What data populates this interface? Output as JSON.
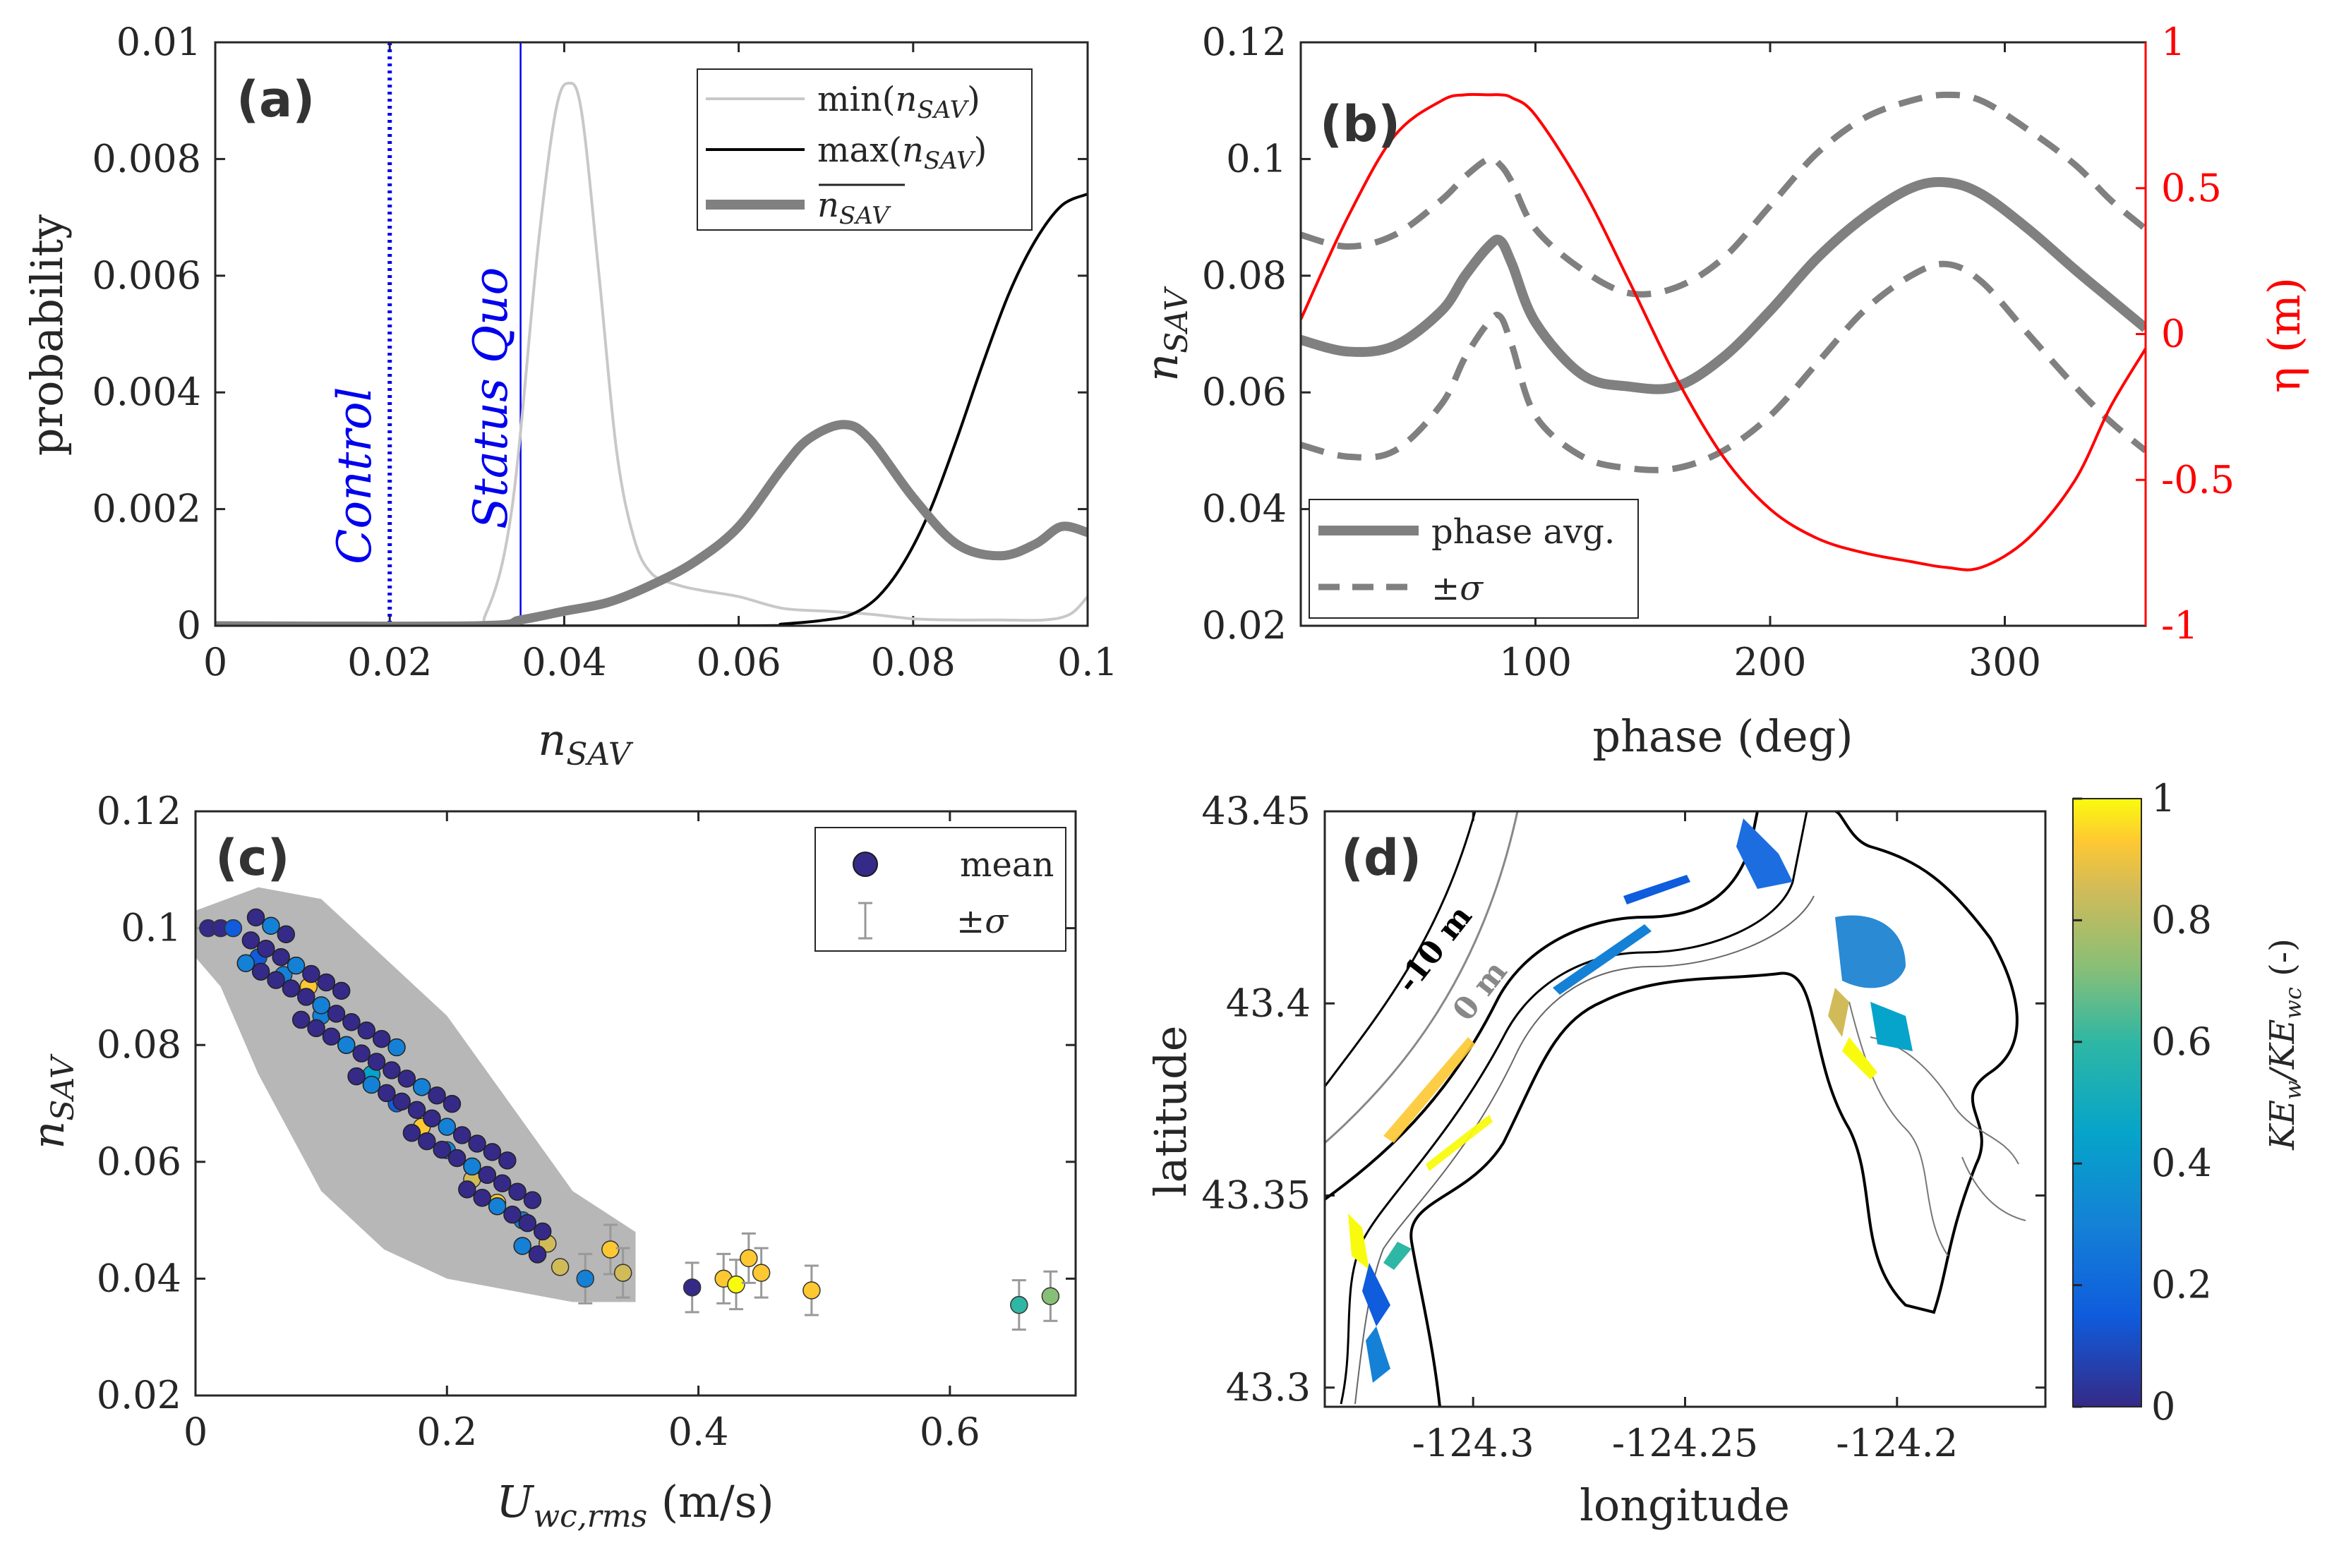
{
  "colors": {
    "axis": "#262626",
    "gray_thick": "#808080",
    "gray_light": "#c8c8c8",
    "black": "#000000",
    "blue": "#0000ee",
    "red": "#ff0000",
    "errorbar": "#999999"
  },
  "panels": {
    "a": {
      "tag": "(a)",
      "xlabel": "n_SAV",
      "ylabel": "probability",
      "annot_control": "Control",
      "annot_status": "Status Quo"
    },
    "b": {
      "tag": "(b)",
      "xlabel": "phase (deg)",
      "ylabel": "n_SAV",
      "ylabel_right": "η (m)"
    },
    "c": {
      "tag": "(c)",
      "xlabel": "U_wc,rms (m/s)",
      "ylabel": "n_SAV"
    },
    "d": {
      "tag": "(d)",
      "xlabel": "longitude",
      "ylabel": "latitude",
      "colorbar_label": "KE_w/KE_wc (-)",
      "contour_label_1": "-10 m",
      "contour_label_2": "0 m"
    }
  },
  "chart_data": [
    {
      "id": "a",
      "type": "line",
      "title": "(a)",
      "xlabel": "n_SAV",
      "ylabel": "probability",
      "xlim": [
        0,
        0.1
      ],
      "ylim": [
        0,
        0.01
      ],
      "xticks": [
        0,
        0.02,
        0.04,
        0.06,
        0.08,
        0.1
      ],
      "xtick_labels": [
        "0",
        "0.02",
        "0.04",
        "0.06",
        "0.08",
        "0.1"
      ],
      "yticks": [
        0,
        0.002,
        0.004,
        0.006,
        0.008,
        0.01
      ],
      "ytick_labels": [
        "0",
        "0.002",
        "0.004",
        "0.006",
        "0.008",
        "0.01"
      ],
      "legend": [
        "min(n_SAV)",
        "max(n_SAV)",
        "mean n_SAV"
      ],
      "vlines": [
        {
          "name": "Control",
          "x": 0.02,
          "style": "dotted"
        },
        {
          "name": "Status Quo",
          "x": 0.035,
          "style": "solid"
        }
      ],
      "series": [
        {
          "name": "min(n_SAV)",
          "x": [
            0,
            0.028,
            0.031,
            0.034,
            0.037,
            0.039,
            0.0405,
            0.042,
            0.044,
            0.046,
            0.048,
            0.05,
            0.053,
            0.056,
            0.06,
            0.065,
            0.07,
            0.075,
            0.08,
            0.085,
            0.09,
            0.095,
            0.098,
            0.1
          ],
          "values": [
            0,
            0,
            0.0002,
            0.002,
            0.0065,
            0.0088,
            0.0093,
            0.0088,
            0.006,
            0.003,
            0.0015,
            0.0009,
            0.0007,
            0.0006,
            0.0005,
            0.0003,
            0.00025,
            0.0002,
            0.00012,
            0.0001,
            0.0001,
            0.0001,
            0.0002,
            0.0005
          ]
        },
        {
          "name": "max(n_SAV)",
          "x": [
            0,
            0.06,
            0.065,
            0.07,
            0.073,
            0.076,
            0.079,
            0.082,
            0.085,
            0.088,
            0.091,
            0.094,
            0.097,
            0.1
          ],
          "values": [
            0,
            0,
            3e-05,
            0.0001,
            0.0002,
            0.0005,
            0.0011,
            0.002,
            0.0032,
            0.0045,
            0.0057,
            0.0066,
            0.0072,
            0.0074
          ]
        },
        {
          "name": "mean n_SAV",
          "x": [
            0,
            0.03,
            0.035,
            0.04,
            0.045,
            0.05,
            0.055,
            0.06,
            0.065,
            0.068,
            0.072,
            0.075,
            0.08,
            0.085,
            0.09,
            0.094,
            0.097,
            0.1
          ],
          "values": [
            0,
            0,
            0.0001,
            0.00025,
            0.0004,
            0.0007,
            0.0011,
            0.0017,
            0.0027,
            0.0032,
            0.00345,
            0.0032,
            0.0022,
            0.0014,
            0.0012,
            0.0014,
            0.0017,
            0.0016
          ]
        }
      ]
    },
    {
      "id": "b",
      "type": "line",
      "title": "(b)",
      "xlabel": "phase (deg)",
      "ylabel": "n_SAV",
      "ylabel_right": "η (m)",
      "xlim": [
        0,
        360
      ],
      "ylim": [
        0.02,
        0.12
      ],
      "ylim_right": [
        -1,
        1
      ],
      "xticks": [
        100,
        200,
        300
      ],
      "xtick_labels": [
        "100",
        "200",
        "300"
      ],
      "yticks": [
        0.02,
        0.04,
        0.06,
        0.08,
        0.1,
        0.12
      ],
      "ytick_labels": [
        "0.02",
        "0.04",
        "0.06",
        "0.08",
        "0.1",
        "0.12"
      ],
      "yticks_right": [
        -1,
        -0.5,
        0,
        0.5,
        1
      ],
      "ytick_labels_right": [
        "-1",
        "-0.5",
        "0",
        "0.5",
        "1"
      ],
      "legend": [
        "phase avg.",
        "±σ"
      ],
      "x": [
        0,
        20,
        40,
        60,
        70,
        80,
        85,
        90,
        100,
        120,
        140,
        160,
        180,
        200,
        220,
        240,
        260,
        275,
        290,
        310,
        330,
        345,
        360
      ],
      "series": [
        {
          "name": "phase avg.",
          "values": [
            0.069,
            0.067,
            0.068,
            0.074,
            0.08,
            0.085,
            0.086,
            0.082,
            0.072,
            0.063,
            0.061,
            0.061,
            0.066,
            0.074,
            0.083,
            0.09,
            0.095,
            0.096,
            0.094,
            0.088,
            0.081,
            0.076,
            0.071
          ]
        },
        {
          "name": "+σ",
          "values": [
            0.087,
            0.085,
            0.087,
            0.093,
            0.097,
            0.1,
            0.099,
            0.096,
            0.088,
            0.081,
            0.077,
            0.078,
            0.083,
            0.092,
            0.101,
            0.107,
            0.11,
            0.111,
            0.11,
            0.105,
            0.099,
            0.093,
            0.088
          ]
        },
        {
          "name": "-σ",
          "values": [
            0.051,
            0.049,
            0.05,
            0.058,
            0.066,
            0.072,
            0.073,
            0.068,
            0.056,
            0.049,
            0.047,
            0.047,
            0.05,
            0.056,
            0.065,
            0.074,
            0.08,
            0.082,
            0.079,
            0.07,
            0.061,
            0.055,
            0.05
          ]
        },
        {
          "name": "η",
          "axis": "right",
          "values": [
            0.05,
            0.4,
            0.68,
            0.8,
            0.82,
            0.82,
            0.82,
            0.81,
            0.75,
            0.5,
            0.18,
            -0.15,
            -0.42,
            -0.6,
            -0.7,
            -0.75,
            -0.78,
            -0.8,
            -0.8,
            -0.7,
            -0.5,
            -0.25,
            -0.05
          ]
        }
      ]
    },
    {
      "id": "c",
      "type": "scatter",
      "title": "(c)",
      "xlabel": "U_wc,rms (m/s)",
      "ylabel": "n_SAV",
      "xlim": [
        0,
        0.7
      ],
      "ylim": [
        0.02,
        0.12
      ],
      "xticks": [
        0,
        0.2,
        0.4,
        0.6
      ],
      "xtick_labels": [
        "0",
        "0.2",
        "0.4",
        "0.6"
      ],
      "yticks": [
        0.02,
        0.04,
        0.06,
        0.08,
        0.1,
        0.12
      ],
      "ytick_labels": [
        "0.02",
        "0.04",
        "0.06",
        "0.08",
        "0.1",
        "0.12"
      ],
      "legend": [
        "mean",
        "±σ"
      ],
      "colormap": "parula",
      "color_range": [
        0,
        1
      ],
      "points_sample": [
        {
          "u": 0.01,
          "n": 0.1,
          "c": 0.0
        },
        {
          "u": 0.02,
          "n": 0.1,
          "c": 0.0
        },
        {
          "u": 0.03,
          "n": 0.1,
          "c": 0.1
        },
        {
          "u": 0.05,
          "n": 0.095,
          "c": 0.1
        },
        {
          "u": 0.07,
          "n": 0.092,
          "c": 0.3
        },
        {
          "u": 0.09,
          "n": 0.09,
          "c": 0.9
        },
        {
          "u": 0.1,
          "n": 0.085,
          "c": 0.2
        },
        {
          "u": 0.12,
          "n": 0.08,
          "c": 0.1
        },
        {
          "u": 0.14,
          "n": 0.075,
          "c": 0.4
        },
        {
          "u": 0.16,
          "n": 0.07,
          "c": 0.1
        },
        {
          "u": 0.18,
          "n": 0.066,
          "c": 0.9
        },
        {
          "u": 0.2,
          "n": 0.062,
          "c": 0.3
        },
        {
          "u": 0.22,
          "n": 0.057,
          "c": 0.8
        },
        {
          "u": 0.24,
          "n": 0.053,
          "c": 0.9
        },
        {
          "u": 0.26,
          "n": 0.05,
          "c": 0.2
        },
        {
          "u": 0.28,
          "n": 0.046,
          "c": 0.7
        },
        {
          "u": 0.29,
          "n": 0.042,
          "c": 0.8
        },
        {
          "u": 0.31,
          "n": 0.04,
          "c": 0.3
        },
        {
          "u": 0.33,
          "n": 0.045,
          "c": 0.9
        },
        {
          "u": 0.34,
          "n": 0.041,
          "c": 0.8
        },
        {
          "u": 0.395,
          "n": 0.0385,
          "c": 0.0
        },
        {
          "u": 0.42,
          "n": 0.04,
          "c": 0.9
        },
        {
          "u": 0.43,
          "n": 0.039,
          "c": 1.0
        },
        {
          "u": 0.44,
          "n": 0.0435,
          "c": 0.9
        },
        {
          "u": 0.45,
          "n": 0.041,
          "c": 0.9
        },
        {
          "u": 0.49,
          "n": 0.038,
          "c": 0.9
        },
        {
          "u": 0.655,
          "n": 0.0355,
          "c": 0.5
        },
        {
          "u": 0.68,
          "n": 0.037,
          "c": 0.6
        }
      ]
    },
    {
      "id": "d",
      "type": "heatmap",
      "title": "(d)",
      "xlabel": "longitude",
      "ylabel": "latitude",
      "xlim": [
        -124.335,
        -124.165
      ],
      "ylim": [
        43.295,
        43.45
      ],
      "xticks": [
        -124.3,
        -124.25,
        -124.2
      ],
      "xtick_labels": [
        "-124.3",
        "-124.25",
        "-124.2"
      ],
      "yticks": [
        43.3,
        43.35,
        43.4,
        43.45
      ],
      "ytick_labels": [
        "43.3",
        "43.35",
        "43.4",
        "43.45"
      ],
      "colorbar": {
        "label": "KE_w/KE_wc (-)",
        "range": [
          0,
          1
        ],
        "ticks": [
          0,
          0.2,
          0.4,
          0.6,
          0.8,
          1
        ],
        "tick_labels": [
          "0",
          "0.2",
          "0.4",
          "0.6",
          "0.8",
          "1"
        ]
      },
      "annotations": [
        "-10 m",
        "0 m"
      ]
    }
  ]
}
